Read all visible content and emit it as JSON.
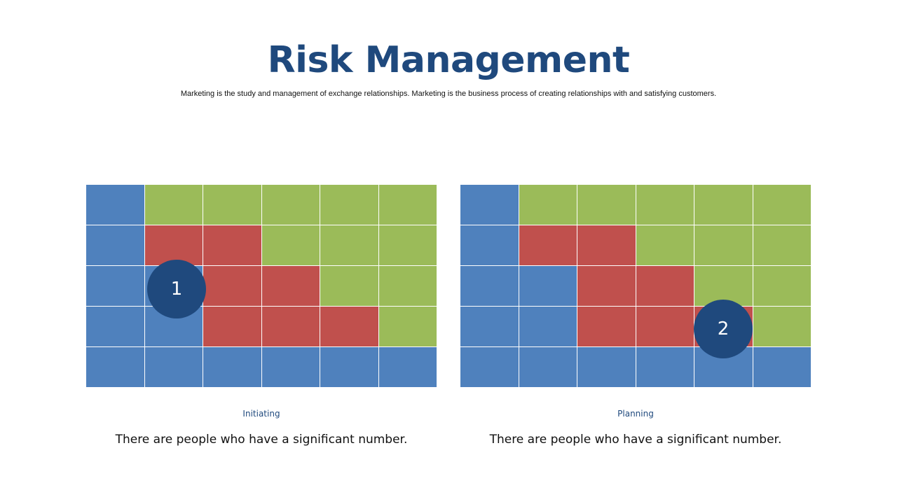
{
  "title": "Risk Management",
  "subtitle": "Marketing is the study and management of exchange relationships. Marketing is the  business process of creating relationships with and satisfying customers.",
  "colors": {
    "B": "#4f81bd",
    "G": "#9bbb59",
    "R": "#c0504d",
    "marker": "#1f497d",
    "title": "#1f497d"
  },
  "panels": [
    {
      "label": "Initiating",
      "text": "There are people who have a significant number.",
      "marker_label": "1",
      "grid": [
        [
          "B",
          "G",
          "G",
          "G",
          "G",
          "G"
        ],
        [
          "B",
          "R",
          "R",
          "G",
          "G",
          "G"
        ],
        [
          "B",
          "B",
          "R",
          "R",
          "G",
          "G"
        ],
        [
          "B",
          "B",
          "R",
          "R",
          "R",
          "G"
        ],
        [
          "B",
          "B",
          "B",
          "B",
          "B",
          "B"
        ]
      ]
    },
    {
      "label": "Planning",
      "text": "There are people who have a significant number.",
      "marker_label": "2",
      "grid": [
        [
          "B",
          "G",
          "G",
          "G",
          "G",
          "G"
        ],
        [
          "B",
          "R",
          "R",
          "G",
          "G",
          "G"
        ],
        [
          "B",
          "B",
          "R",
          "R",
          "G",
          "G"
        ],
        [
          "B",
          "B",
          "R",
          "R",
          "R",
          "G"
        ],
        [
          "B",
          "B",
          "B",
          "B",
          "B",
          "B"
        ]
      ]
    }
  ]
}
